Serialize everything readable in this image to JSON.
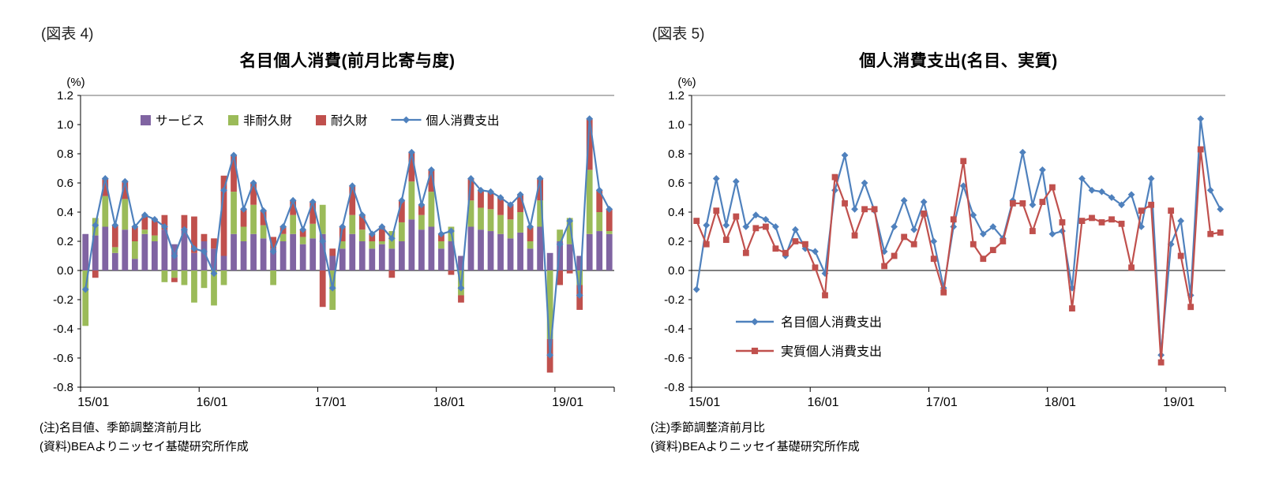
{
  "page": {
    "background": "#ffffff"
  },
  "figure4": {
    "label": "(図表 4)",
    "title": "名目個人消費(前月比寄与度)",
    "unit": "(%)",
    "notes": [
      "(注)名目値、季節調整済前月比",
      "(資料)BEAよりニッセイ基礎研究所作成"
    ]
  },
  "figure5": {
    "label": "(図表 5)",
    "title": "個人消費支出(名目、実質)",
    "unit": "(%)",
    "notes": [
      "(注)季節調整済前月比",
      "(資料)BEAよりニッセイ基礎研究所作成"
    ]
  },
  "colors": {
    "services_purple": "#8064A2",
    "nondurables_green": "#9BBB59",
    "durables_red": "#C0504D",
    "pce_blue": "#4F81BD"
  },
  "chart_data": [
    {
      "type": "bar",
      "stacked": true,
      "title": "名目個人消費(前月比寄与度)",
      "unit": "(%)",
      "ylim": [
        -0.8,
        1.2
      ],
      "ytick_step": 0.2,
      "yticks": [
        "1.2",
        "1.0",
        "0.8",
        "0.6",
        "0.4",
        "0.2",
        "0.0",
        "-0.2",
        "-0.4",
        "-0.6",
        "-0.8"
      ],
      "xticks": [
        "15/01",
        "16/01",
        "17/01",
        "18/01",
        "19/01"
      ],
      "legend_position": "top-inside",
      "categories": [
        "15/01",
        "15/02",
        "15/03",
        "15/04",
        "15/05",
        "15/06",
        "15/07",
        "15/08",
        "15/09",
        "15/10",
        "15/11",
        "15/12",
        "16/01",
        "16/02",
        "16/03",
        "16/04",
        "16/05",
        "16/06",
        "16/07",
        "16/08",
        "16/09",
        "16/10",
        "16/11",
        "16/12",
        "17/01",
        "17/02",
        "17/03",
        "17/04",
        "17/05",
        "17/06",
        "17/07",
        "17/08",
        "17/09",
        "17/10",
        "17/11",
        "17/12",
        "18/01",
        "18/02",
        "18/03",
        "18/04",
        "18/05",
        "18/06",
        "18/07",
        "18/08",
        "18/09",
        "18/10",
        "18/11",
        "18/12",
        "19/01",
        "19/02",
        "19/03",
        "19/04",
        "19/05",
        "19/06"
      ],
      "series": [
        {
          "name": "サービス",
          "type": "bar",
          "color": "#8064A2",
          "values": [
            0.25,
            0.24,
            0.3,
            0.12,
            0.28,
            0.08,
            0.25,
            0.2,
            0.28,
            0.18,
            0.29,
            0.12,
            0.2,
            0.15,
            0.1,
            0.25,
            0.2,
            0.25,
            0.22,
            0.15,
            0.2,
            0.25,
            0.18,
            0.22,
            0.25,
            0.1,
            0.15,
            0.25,
            0.2,
            0.15,
            0.18,
            0.15,
            0.2,
            0.35,
            0.28,
            0.3,
            0.15,
            0.2,
            0.1,
            0.3,
            0.28,
            0.27,
            0.25,
            0.22,
            0.26,
            0.15,
            0.3,
            0.12,
            0.2,
            0.18,
            0.1,
            0.25,
            0.27,
            0.25
          ]
        },
        {
          "name": "非耐久財",
          "type": "bar",
          "color": "#9BBB59",
          "values": [
            -0.38,
            0.12,
            0.21,
            0.04,
            0.21,
            0.12,
            0.03,
            0.04,
            -0.08,
            -0.05,
            -0.1,
            -0.22,
            -0.12,
            -0.24,
            -0.1,
            0.29,
            0.1,
            0.2,
            0.09,
            -0.1,
            0.05,
            0.13,
            0.05,
            0.1,
            0.2,
            -0.27,
            0.05,
            0.13,
            0.08,
            0.05,
            0.02,
            0.12,
            0.13,
            0.26,
            0.1,
            0.24,
            0.05,
            0.1,
            -0.17,
            0.18,
            0.15,
            0.15,
            0.13,
            0.13,
            0.14,
            0.05,
            0.18,
            -0.47,
            0.08,
            0.18,
            -0.1,
            0.44,
            0.13,
            0.02
          ]
        },
        {
          "name": "耐久財",
          "type": "bar",
          "color": "#C0504D",
          "values": [
            0.0,
            -0.05,
            0.12,
            0.15,
            0.12,
            0.1,
            0.1,
            0.11,
            0.1,
            -0.03,
            0.09,
            0.25,
            0.05,
            0.07,
            0.55,
            0.25,
            0.12,
            0.15,
            0.1,
            0.08,
            0.05,
            0.1,
            0.05,
            0.15,
            -0.25,
            0.05,
            0.1,
            0.2,
            0.1,
            0.05,
            0.1,
            -0.05,
            0.15,
            0.2,
            0.07,
            0.15,
            0.05,
            -0.03,
            -0.05,
            0.15,
            0.12,
            0.12,
            0.12,
            0.1,
            0.12,
            0.1,
            0.15,
            -0.23,
            -0.1,
            -0.02,
            -0.17,
            0.35,
            0.15,
            0.15
          ]
        },
        {
          "name": "個人消費支出",
          "type": "line",
          "marker": "diamond",
          "color": "#4F81BD",
          "values": [
            -0.13,
            0.31,
            0.63,
            0.31,
            0.61,
            0.3,
            0.38,
            0.35,
            0.3,
            0.1,
            0.28,
            0.15,
            0.13,
            -0.02,
            0.55,
            0.79,
            0.42,
            0.6,
            0.41,
            0.13,
            0.3,
            0.48,
            0.28,
            0.47,
            0.2,
            -0.12,
            0.3,
            0.58,
            0.38,
            0.25,
            0.3,
            0.22,
            0.48,
            0.81,
            0.45,
            0.69,
            0.25,
            0.27,
            -0.12,
            0.63,
            0.55,
            0.54,
            0.5,
            0.45,
            0.52,
            0.3,
            0.63,
            -0.58,
            0.18,
            0.34,
            -0.17,
            1.04,
            0.55,
            0.42
          ]
        }
      ]
    },
    {
      "type": "line",
      "title": "個人消費支出(名目、実質)",
      "unit": "(%)",
      "ylim": [
        -0.8,
        1.2
      ],
      "ytick_step": 0.2,
      "yticks": [
        "1.2",
        "1.0",
        "0.8",
        "0.6",
        "0.4",
        "0.2",
        "0.0",
        "-0.2",
        "-0.4",
        "-0.6",
        "-0.8"
      ],
      "xticks": [
        "15/01",
        "16/01",
        "17/01",
        "18/01",
        "19/01"
      ],
      "legend_position": "middle-left-inside",
      "categories": [
        "15/01",
        "15/02",
        "15/03",
        "15/04",
        "15/05",
        "15/06",
        "15/07",
        "15/08",
        "15/09",
        "15/10",
        "15/11",
        "15/12",
        "16/01",
        "16/02",
        "16/03",
        "16/04",
        "16/05",
        "16/06",
        "16/07",
        "16/08",
        "16/09",
        "16/10",
        "16/11",
        "16/12",
        "17/01",
        "17/02",
        "17/03",
        "17/04",
        "17/05",
        "17/06",
        "17/07",
        "17/08",
        "17/09",
        "17/10",
        "17/11",
        "17/12",
        "18/01",
        "18/02",
        "18/03",
        "18/04",
        "18/05",
        "18/06",
        "18/07",
        "18/08",
        "18/09",
        "18/10",
        "18/11",
        "18/12",
        "19/01",
        "19/02",
        "19/03",
        "19/04",
        "19/05",
        "19/06"
      ],
      "series": [
        {
          "name": "名目個人消費支出",
          "type": "line",
          "marker": "diamond",
          "color": "#4F81BD",
          "values": [
            -0.13,
            0.31,
            0.63,
            0.31,
            0.61,
            0.3,
            0.38,
            0.35,
            0.3,
            0.1,
            0.28,
            0.15,
            0.13,
            -0.02,
            0.55,
            0.79,
            0.42,
            0.6,
            0.41,
            0.13,
            0.3,
            0.48,
            0.28,
            0.47,
            0.2,
            -0.12,
            0.3,
            0.58,
            0.38,
            0.25,
            0.3,
            0.22,
            0.48,
            0.81,
            0.45,
            0.69,
            0.25,
            0.27,
            -0.12,
            0.63,
            0.55,
            0.54,
            0.5,
            0.45,
            0.52,
            0.3,
            0.63,
            -0.58,
            0.18,
            0.34,
            -0.17,
            1.04,
            0.55,
            0.42
          ]
        },
        {
          "name": "実質個人消費支出",
          "type": "line",
          "marker": "square",
          "color": "#C0504D",
          "values": [
            0.34,
            0.18,
            0.41,
            0.21,
            0.37,
            0.12,
            0.29,
            0.3,
            0.15,
            0.12,
            0.2,
            0.18,
            0.02,
            -0.17,
            0.64,
            0.46,
            0.24,
            0.42,
            0.42,
            0.03,
            0.1,
            0.23,
            0.18,
            0.39,
            0.08,
            -0.15,
            0.35,
            0.75,
            0.18,
            0.08,
            0.14,
            0.2,
            0.46,
            0.46,
            0.27,
            0.47,
            0.57,
            0.33,
            -0.26,
            0.34,
            0.36,
            0.33,
            0.35,
            0.32,
            0.02,
            0.41,
            0.45,
            -0.63,
            0.41,
            0.1,
            -0.25,
            0.83,
            0.25,
            0.26
          ]
        }
      ]
    }
  ]
}
